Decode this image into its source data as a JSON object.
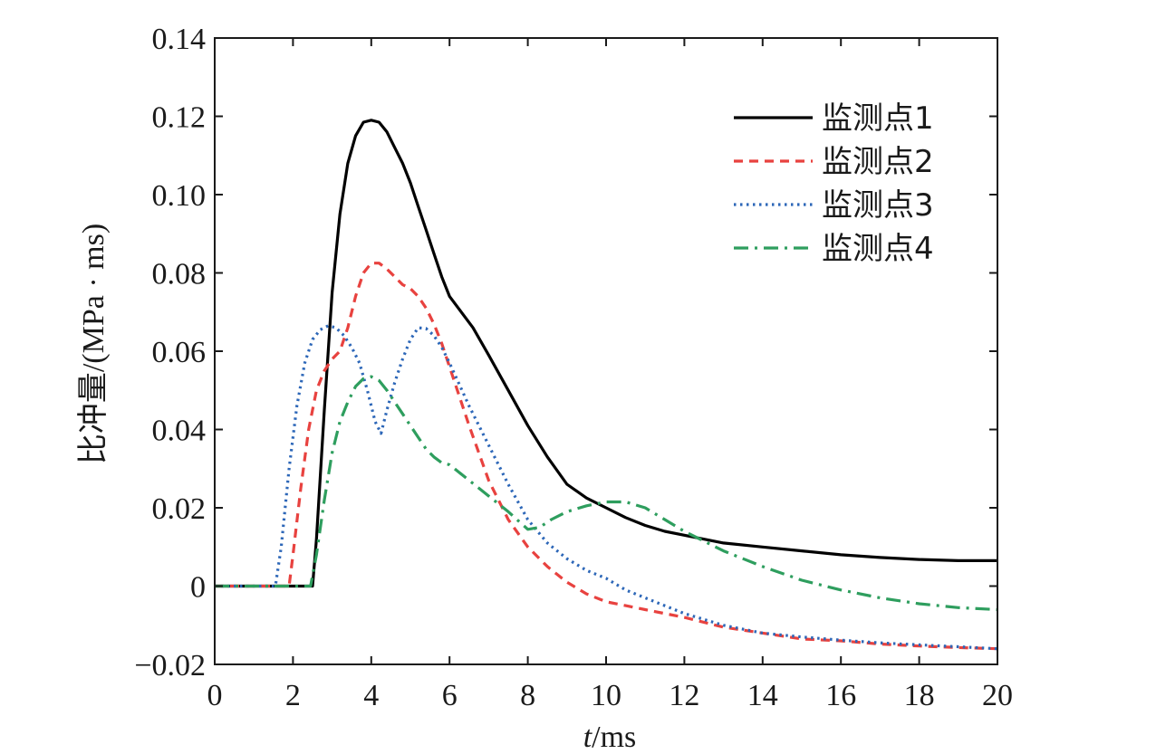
{
  "chart_data": {
    "type": "line",
    "xlabel_italic": "t",
    "xlabel_rest": "/ms",
    "ylabel": "比冲量/(MPa · ms)",
    "xlim": [
      0,
      20
    ],
    "ylim": [
      -0.02,
      0.14
    ],
    "xticks": [
      0,
      2,
      4,
      6,
      8,
      10,
      12,
      14,
      16,
      18,
      20
    ],
    "xtick_labels": [
      "0",
      "2",
      "4",
      "6",
      "8",
      "10",
      "12",
      "14",
      "16",
      "18",
      "20"
    ],
    "yticks": [
      -0.02,
      0,
      0.02,
      0.04,
      0.06,
      0.08,
      0.1,
      0.12,
      0.14
    ],
    "ytick_labels": [
      "−0.02",
      "0",
      "0.02",
      "0.04",
      "0.06",
      "0.08",
      "0.10",
      "0.12",
      "0.14"
    ],
    "grid": false,
    "legend_position": "top-right",
    "series": [
      {
        "name": "监测点1",
        "color": "#000000",
        "dash": "solid",
        "x": [
          0,
          2.5,
          2.6,
          2.8,
          3.0,
          3.2,
          3.4,
          3.6,
          3.8,
          4.0,
          4.2,
          4.4,
          4.6,
          4.8,
          5.0,
          5.2,
          5.4,
          5.6,
          5.8,
          6.0,
          6.3,
          6.6,
          7.0,
          7.5,
          8.0,
          8.5,
          9.0,
          9.5,
          10.0,
          10.5,
          11.0,
          11.5,
          12.0,
          13.0,
          14.0,
          15.0,
          16.0,
          17.0,
          18.0,
          19.0,
          20.0
        ],
        "y": [
          0,
          0,
          0.012,
          0.045,
          0.075,
          0.095,
          0.108,
          0.115,
          0.1185,
          0.119,
          0.1185,
          0.116,
          0.112,
          0.108,
          0.103,
          0.097,
          0.091,
          0.085,
          0.079,
          0.074,
          0.07,
          0.066,
          0.059,
          0.05,
          0.041,
          0.033,
          0.026,
          0.0225,
          0.02,
          0.0175,
          0.0155,
          0.014,
          0.013,
          0.011,
          0.01,
          0.009,
          0.008,
          0.0073,
          0.0068,
          0.0065,
          0.0065
        ]
      },
      {
        "name": "监测点2",
        "color": "#e8423f",
        "dash": "dashed",
        "x": [
          0,
          1.9,
          2.0,
          2.2,
          2.4,
          2.6,
          2.8,
          3.0,
          3.2,
          3.4,
          3.6,
          3.8,
          4.0,
          4.2,
          4.4,
          4.6,
          4.8,
          5.0,
          5.2,
          5.4,
          5.6,
          5.8,
          6.0,
          6.5,
          7.0,
          7.5,
          8.0,
          8.5,
          9.0,
          9.5,
          10.0,
          10.5,
          11.0,
          12.0,
          13.0,
          14.0,
          15.0,
          16.0,
          17.0,
          18.0,
          19.0,
          20.0
        ],
        "y": [
          0,
          0,
          0.008,
          0.025,
          0.04,
          0.05,
          0.055,
          0.058,
          0.06,
          0.066,
          0.074,
          0.08,
          0.0825,
          0.0825,
          0.081,
          0.079,
          0.077,
          0.076,
          0.074,
          0.071,
          0.067,
          0.062,
          0.056,
          0.041,
          0.027,
          0.017,
          0.01,
          0.005,
          0.001,
          -0.002,
          -0.004,
          -0.005,
          -0.006,
          -0.008,
          -0.0105,
          -0.012,
          -0.0135,
          -0.014,
          -0.0148,
          -0.0153,
          -0.0157,
          -0.016
        ]
      },
      {
        "name": "监测点3",
        "color": "#2d67b8",
        "dash": "dotted",
        "x": [
          0,
          1.55,
          1.7,
          1.9,
          2.1,
          2.3,
          2.5,
          2.7,
          2.9,
          3.1,
          3.3,
          3.5,
          3.7,
          3.9,
          4.1,
          4.25,
          4.4,
          4.6,
          4.8,
          5.0,
          5.2,
          5.4,
          5.6,
          5.8,
          6.0,
          6.5,
          7.0,
          7.5,
          8.0,
          8.5,
          9.0,
          9.5,
          10.0,
          10.5,
          11.0,
          12.0,
          13.0,
          14.0,
          15.0,
          16.0,
          17.0,
          18.0,
          19.0,
          20.0
        ],
        "y": [
          0,
          0,
          0.01,
          0.03,
          0.046,
          0.057,
          0.063,
          0.0655,
          0.0665,
          0.066,
          0.064,
          0.061,
          0.057,
          0.05,
          0.042,
          0.039,
          0.045,
          0.052,
          0.058,
          0.063,
          0.066,
          0.0658,
          0.064,
          0.061,
          0.057,
          0.046,
          0.036,
          0.026,
          0.017,
          0.011,
          0.007,
          0.004,
          0.002,
          -0.001,
          -0.003,
          -0.007,
          -0.01,
          -0.012,
          -0.013,
          -0.0138,
          -0.0145,
          -0.015,
          -0.0155,
          -0.016
        ]
      },
      {
        "name": "监测点4",
        "color": "#2e9e5e",
        "dash": "dashdot",
        "x": [
          0,
          2.45,
          2.6,
          2.8,
          3.0,
          3.2,
          3.4,
          3.6,
          3.8,
          4.0,
          4.2,
          4.4,
          4.6,
          4.8,
          5.0,
          5.2,
          5.4,
          5.6,
          5.8,
          6.0,
          6.5,
          7.0,
          7.5,
          8.0,
          8.3,
          8.6,
          9.0,
          9.5,
          10.0,
          10.5,
          11.0,
          11.5,
          12.0,
          13.0,
          14.0,
          15.0,
          16.0,
          17.0,
          18.0,
          19.0,
          20.0
        ],
        "y": [
          0,
          0,
          0.008,
          0.022,
          0.034,
          0.042,
          0.047,
          0.051,
          0.053,
          0.0535,
          0.0525,
          0.05,
          0.047,
          0.044,
          0.041,
          0.038,
          0.035,
          0.033,
          0.0315,
          0.031,
          0.027,
          0.023,
          0.019,
          0.0145,
          0.015,
          0.017,
          0.019,
          0.0205,
          0.0215,
          0.0215,
          0.02,
          0.017,
          0.014,
          0.009,
          0.005,
          0.0015,
          -0.001,
          -0.003,
          -0.0045,
          -0.0055,
          -0.006
        ]
      }
    ]
  }
}
